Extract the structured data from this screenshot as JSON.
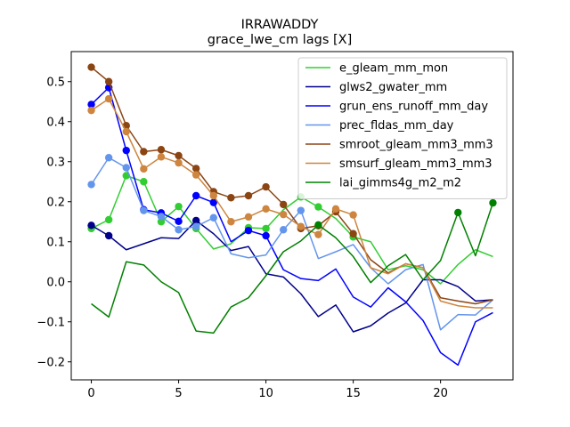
{
  "chart_data": {
    "type": "line",
    "title": "IRRAWADDY",
    "subtitle": "grace_lwe_cm lags [X]",
    "xlabel": "",
    "ylabel": "",
    "xlim": [
      -1.15,
      24.15
    ],
    "ylim": [
      -0.245,
      0.575
    ],
    "xticks": [
      0,
      5,
      10,
      15,
      20
    ],
    "yticks": [
      -0.2,
      -0.1,
      0.0,
      0.1,
      0.2,
      0.3,
      0.4,
      0.5
    ],
    "ytick_labels": [
      "−0.2",
      "−0.1",
      "0.0",
      "0.1",
      "0.2",
      "0.3",
      "0.4",
      "0.5"
    ],
    "grid": false,
    "legend_position": "top-right",
    "x": [
      0,
      1,
      2,
      3,
      4,
      5,
      6,
      7,
      8,
      9,
      10,
      11,
      12,
      13,
      14,
      15,
      16,
      17,
      18,
      19,
      20,
      21,
      22,
      23
    ],
    "series": [
      {
        "name": "e_gleam_mm_mon",
        "color": "#32cd32",
        "values": [
          0.133,
          0.155,
          0.265,
          0.25,
          0.15,
          0.188,
          0.133,
          0.082,
          0.095,
          0.135,
          0.133,
          0.18,
          0.212,
          0.187,
          0.158,
          0.112,
          0.1,
          0.03,
          0.04,
          0.03,
          -0.005,
          0.043,
          0.08,
          0.063
        ],
        "markers": [
          0,
          1,
          2,
          3,
          4,
          5,
          6,
          9,
          10,
          12,
          13,
          15
        ]
      },
      {
        "name": "glws2_gwater_mm",
        "color": "#00008b",
        "values": [
          0.141,
          0.115,
          0.08,
          0.095,
          0.11,
          0.108,
          0.153,
          0.12,
          0.078,
          0.088,
          0.02,
          0.012,
          -0.03,
          -0.087,
          -0.058,
          -0.125,
          -0.11,
          -0.078,
          -0.053,
          0.005,
          0.005,
          -0.012,
          -0.048,
          -0.045
        ],
        "markers": [
          0,
          1,
          6
        ]
      },
      {
        "name": "grun_ens_runoff_mm_day",
        "color": "#0000ff",
        "values": [
          0.443,
          0.485,
          0.328,
          0.18,
          0.172,
          0.151,
          0.215,
          0.198,
          0.1,
          0.128,
          0.115,
          0.03,
          0.008,
          0.003,
          0.032,
          -0.038,
          -0.063,
          -0.015,
          -0.05,
          -0.097,
          -0.177,
          -0.208,
          -0.1,
          -0.077
        ],
        "markers": [
          0,
          1,
          2,
          3,
          4,
          5,
          6,
          7,
          9,
          10
        ]
      },
      {
        "name": "prec_fldas_mm_day",
        "color": "#6495ed",
        "values": [
          0.243,
          0.31,
          0.285,
          0.178,
          0.163,
          0.13,
          0.138,
          0.16,
          0.07,
          0.06,
          0.067,
          0.13,
          0.178,
          0.058,
          0.075,
          0.093,
          0.035,
          -0.005,
          0.03,
          0.043,
          -0.12,
          -0.082,
          -0.083,
          -0.045
        ],
        "markers": [
          0,
          1,
          2,
          3,
          4,
          5,
          6,
          7,
          11,
          12
        ]
      },
      {
        "name": "smroot_gleam_mm3_mm3",
        "color": "#8b4513",
        "values": [
          0.536,
          0.5,
          0.39,
          0.325,
          0.33,
          0.315,
          0.283,
          0.225,
          0.21,
          0.215,
          0.237,
          0.193,
          0.133,
          0.14,
          0.175,
          0.12,
          0.055,
          0.022,
          0.045,
          0.035,
          -0.04,
          -0.048,
          -0.055,
          -0.045
        ],
        "markers": [
          0,
          1,
          2,
          3,
          4,
          5,
          6,
          7,
          8,
          9,
          10,
          11,
          12,
          13,
          14,
          15
        ]
      },
      {
        "name": "smsurf_gleam_mm3_mm3",
        "color": "#cd853f",
        "values": [
          0.428,
          0.457,
          0.375,
          0.282,
          0.312,
          0.297,
          0.267,
          0.215,
          0.15,
          0.162,
          0.182,
          0.168,
          0.138,
          0.118,
          0.182,
          0.167,
          0.035,
          0.02,
          0.045,
          0.035,
          -0.048,
          -0.06,
          -0.065,
          -0.065
        ],
        "markers": [
          0,
          1,
          2,
          3,
          4,
          5,
          6,
          7,
          8,
          9,
          10,
          11,
          12,
          13,
          14,
          15
        ]
      },
      {
        "name": "lai_gimms4g_m2_m2",
        "color": "#008000",
        "values": [
          -0.055,
          -0.088,
          0.05,
          0.042,
          0.0,
          -0.027,
          -0.123,
          -0.128,
          -0.063,
          -0.04,
          0.015,
          0.075,
          0.102,
          0.142,
          0.11,
          0.063,
          -0.002,
          0.04,
          0.068,
          0.005,
          0.053,
          0.173,
          0.065,
          0.197
        ],
        "markers": [
          13,
          21,
          23
        ]
      }
    ]
  }
}
